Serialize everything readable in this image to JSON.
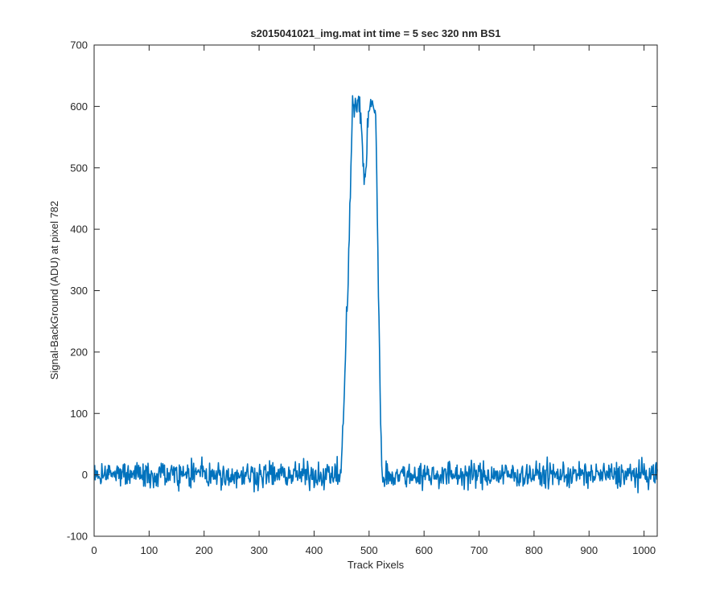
{
  "chart_data": {
    "type": "line",
    "title": "s2015041021_img.mat int time = 5 sec  320 nm BS1",
    "xlabel": "Track Pixels",
    "ylabel": "Signal-BackGround (ADU) at pixel 782",
    "xlim": [
      0,
      1024
    ],
    "ylim": [
      -100,
      700
    ],
    "xticks": [
      0,
      100,
      200,
      300,
      400,
      500,
      600,
      700,
      800,
      900,
      1000
    ],
    "yticks": [
      -100,
      0,
      100,
      200,
      300,
      400,
      500,
      600,
      700
    ],
    "grid": false,
    "line_color": "#0072BD",
    "series": [
      {
        "x_start": 1,
        "x_step": 1,
        "profile": {
          "baseline_noise_amplitude": 14,
          "baseline_mean": 0,
          "rise_start": 448,
          "rise_end": 470,
          "peak_left_center": 482,
          "dip_center": 492,
          "dip_value": 480,
          "peak_right_center": 503,
          "peak_value": 600,
          "fall_start": 512,
          "fall_end": 523
        },
        "key_points": [
          {
            "x": 1,
            "y": 0
          },
          {
            "x": 440,
            "y": 0
          },
          {
            "x": 455,
            "y": 210
          },
          {
            "x": 470,
            "y": 580
          },
          {
            "x": 480,
            "y": 615
          },
          {
            "x": 492,
            "y": 480
          },
          {
            "x": 503,
            "y": 610
          },
          {
            "x": 512,
            "y": 560
          },
          {
            "x": 516,
            "y": 210
          },
          {
            "x": 525,
            "y": 0
          },
          {
            "x": 1024,
            "y": 0
          }
        ]
      }
    ]
  }
}
